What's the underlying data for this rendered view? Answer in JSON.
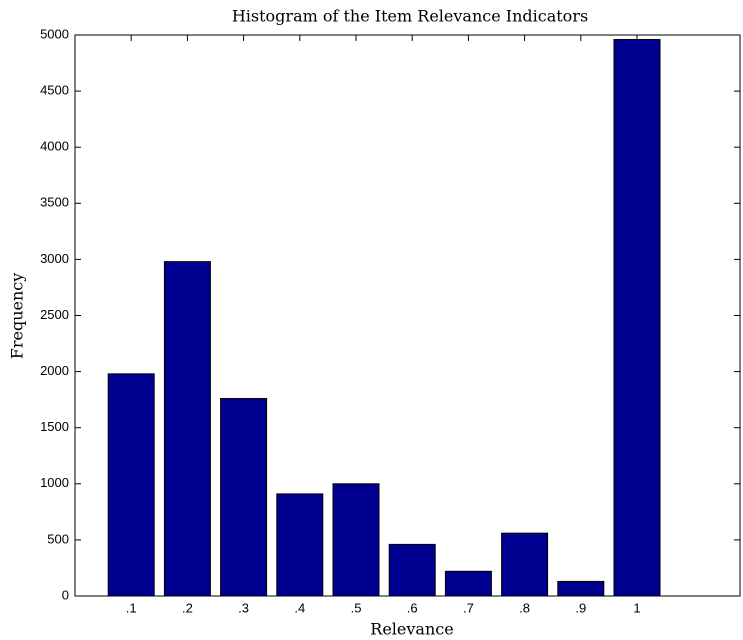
{
  "chart_data": {
    "type": "bar",
    "title": "Histogram of the Item Relevance Indicators",
    "x_label": "Relevance",
    "y_label": "Frequency",
    "categories": [
      ".1",
      ".2",
      ".3",
      ".4",
      ".5",
      ".6",
      ".7",
      ".8",
      ".9",
      "1"
    ],
    "values": [
      1980,
      2980,
      1760,
      910,
      1000,
      460,
      220,
      560,
      130,
      4960
    ],
    "color": "#000090",
    "ylim": [
      0,
      5000
    ],
    "yticks": [
      0,
      500,
      1000,
      1500,
      2000,
      2500,
      3000,
      3500,
      4000,
      4500,
      5000
    ],
    "grid": false
  }
}
